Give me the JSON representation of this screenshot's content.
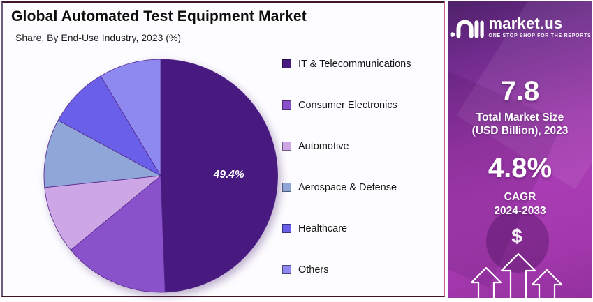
{
  "header": {
    "title": "Global Automated Test Equipment Market",
    "subtitle": "Share, By End-Use Industry, 2023 (%)"
  },
  "chart_data": {
    "type": "pie",
    "title": "Global Automated Test Equipment Market",
    "subtitle": "Share, By End-Use Industry, 2023 (%)",
    "unit": "%",
    "categories": [
      "IT & Telecommunications",
      "Consumer Electronics",
      "Automotive",
      "Aerospace & Defense",
      "Healthcare",
      "Others"
    ],
    "values": [
      49.4,
      14.6,
      9.4,
      9.5,
      8.5,
      8.6
    ],
    "colors": [
      "#481a80",
      "#8a52ca",
      "#cda6e6",
      "#90a5d8",
      "#6a5fe8",
      "#8d89f0"
    ],
    "labeled_slice": {
      "category": "IT & Telecommunications",
      "label": "49.4%"
    },
    "start_angle_deg": 0,
    "direction": "clockwise",
    "legend_position": "right",
    "data_labels_shown": [
      "49.4%"
    ]
  },
  "sidebar": {
    "brand": {
      "name": "market.us",
      "tagline": "ONE STOP SHOP FOR THE REPORTS",
      "logo_icon": "market-us-wave-logo"
    },
    "stats": [
      {
        "value": "7.8",
        "line1": "Total Market Size",
        "line2": "(USD Billion), 2023"
      },
      {
        "value": "4.8%",
        "line1": "CAGR",
        "line2": "2024-2033"
      }
    ],
    "dollar_symbol": "$",
    "icons": [
      "dollar-icon",
      "growth-arrows-icon"
    ],
    "colors": {
      "background_top": "#4e2169",
      "background_accent": "#a93cb4",
      "background_bottom": "#93309e",
      "text": "#ffffff"
    }
  },
  "panel_colors": {
    "background": "#fdfdff",
    "border_dark": "#41142c",
    "border_pink": "#c9608f"
  }
}
